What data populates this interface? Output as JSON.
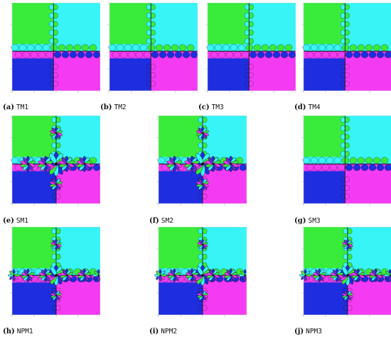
{
  "colors": {
    "green": "#39ec3a",
    "cyan": "#37f5f6",
    "blue": "#1f2de0",
    "magenta": "#f43bf3",
    "purple": "#6b2ccf",
    "dark": "#111111"
  },
  "panels": [
    {
      "letter": "(a)",
      "name": "TM1",
      "pattern": "t",
      "level": 0.0
    },
    {
      "letter": "(b)",
      "name": "TM2",
      "pattern": "t",
      "level": 0.0
    },
    {
      "letter": "(c)",
      "name": "TM3",
      "pattern": "t",
      "level": 0.0
    },
    {
      "letter": "(d)",
      "name": "TM4",
      "pattern": "t",
      "level": 0.0
    },
    {
      "letter": "(e)",
      "name": "SM1",
      "pattern": "s",
      "level": 1.0
    },
    {
      "letter": "(f)",
      "name": "SM2",
      "pattern": "s",
      "level": 0.9
    },
    {
      "letter": "(g)",
      "name": "SM3",
      "pattern": "t",
      "level": 0.0
    },
    {
      "letter": "(h)",
      "name": "NPM1",
      "pattern": "n",
      "level": 0.6
    },
    {
      "letter": "(i)",
      "name": "NPM2",
      "pattern": "n",
      "level": 0.6
    },
    {
      "letter": "(j)",
      "name": "NPM3",
      "pattern": "n",
      "level": 0.6
    }
  ]
}
